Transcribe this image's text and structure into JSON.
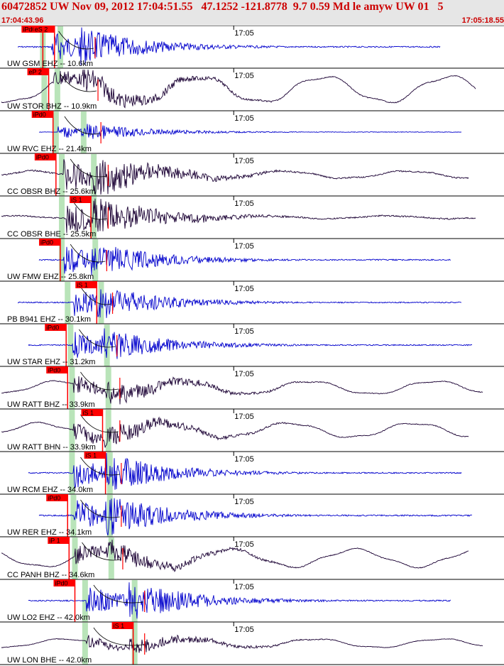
{
  "header": {
    "title": "60472852 UW Nov 09, 2012 17:04:51.55   47.1252 -121.8778  9.7 0.59 Md le amyw UW 01   5",
    "start_time": "17:04:43.96",
    "end_time": "17:05:18.55"
  },
  "colors": {
    "header_text": "#cc0000",
    "header_bg": "#e6e6e6",
    "pick": "#ff0000",
    "pick_window": "#b9e4b9",
    "trace_ehz": "#0000cc",
    "trace_bh": "#1a0033"
  },
  "chart_data": {
    "type": "line",
    "title": "",
    "xlabel": "",
    "ylabel": "",
    "x_range": [
      "17:04:43.96",
      "17:05:18.55"
    ],
    "minute_marker": "17:05",
    "traces": [
      {
        "label": "UW GSM EHZ -- 10.6km",
        "kind": "ehz",
        "amp": 0.9,
        "lf": 0,
        "picks": [
          {
            "text": "iPd0",
            "time": 46.9
          },
          {
            "text": "eS 2",
            "time": 47.7
          }
        ],
        "windows": [
          46.9,
          48.1
        ],
        "onset": 47.5,
        "sdecay": 49.9
      },
      {
        "label": "UW STOR BHZ -- 10.9km",
        "kind": "bh",
        "amp": 0.6,
        "lf": 0.9,
        "picks": [
          {
            "text": "eP 2",
            "time": 47.3
          }
        ],
        "windows": [
          47.0,
          47.9
        ],
        "onset": 47.6,
        "sdecay": 50.1
      },
      {
        "label": "UW RVC EHZ -- 21.4km",
        "kind": "ehz",
        "amp": 0.4,
        "lf": 0,
        "picks": [
          {
            "text": "iPd0",
            "time": 47.6
          }
        ],
        "windows": [
          47.8,
          49.7
        ],
        "onset": 47.9,
        "sdecay": 50.3
      },
      {
        "label": "CC OBSR BHZ -- 25.6km",
        "kind": "bh",
        "amp": 0.95,
        "lf": 0.25,
        "picks": [
          {
            "text": "iPd0",
            "time": 47.8
          }
        ],
        "windows": [
          48.2,
          50.4
        ],
        "onset": 48.3,
        "sdecay": 50.8
      },
      {
        "label": "CC OBSR BHE -- 25.5km",
        "kind": "bh",
        "amp": 0.95,
        "lf": 0.1,
        "picks": [
          {
            "text": "iS 1",
            "time": 50.2
          }
        ],
        "windows": [
          48.2,
          50.4
        ],
        "onset": 48.5,
        "sdecay": 50.8
      },
      {
        "label": "UW FMW EHZ -- 25.8km",
        "kind": "ehz",
        "amp": 0.85,
        "lf": 0,
        "picks": [
          {
            "text": "iPd0",
            "time": 48.1
          }
        ],
        "windows": [
          48.2,
          50.5
        ],
        "onset": 48.3,
        "sdecay": 50.7
      },
      {
        "label": "PB B941 EHZ -- 30.1km",
        "kind": "ehz",
        "amp": 0.8,
        "lf": 0,
        "picks": [
          {
            "text": "iS 1",
            "time": 50.6
          }
        ],
        "windows": [
          48.6,
          50.9
        ],
        "onset": 49.0,
        "sdecay": 51.1
      },
      {
        "label": "UW STAR EHZ -- 31.2km",
        "kind": "ehz",
        "amp": 0.8,
        "lf": 0,
        "picks": [
          {
            "text": "iPd0",
            "time": 48.5
          }
        ],
        "windows": [
          48.8,
          51.3
        ],
        "onset": 48.9,
        "sdecay": 51.4
      },
      {
        "label": "UW RATT BHZ -- 33.9km",
        "kind": "bh",
        "amp": 0.6,
        "lf": 0.45,
        "picks": [
          {
            "text": "iPd0",
            "time": 48.6
          }
        ],
        "windows": [
          48.9,
          51.4
        ],
        "onset": 49.0,
        "sdecay": 51.6
      },
      {
        "label": "UW RATT BHN -- 33.9km",
        "kind": "bh",
        "amp": 0.55,
        "lf": 0.5,
        "picks": [
          {
            "text": "iS 1",
            "time": 51.0
          }
        ],
        "windows": [
          48.9,
          51.4
        ],
        "onset": 49.0,
        "sdecay": 51.6
      },
      {
        "label": "UW RCM EHZ -- 34.0km",
        "kind": "ehz",
        "amp": 0.9,
        "lf": 0,
        "picks": [
          {
            "text": "iS 1",
            "time": 51.2
          }
        ],
        "windows": [
          48.9,
          51.5
        ],
        "onset": 49.0,
        "sdecay": 51.7
      },
      {
        "label": "UW RER EHZ -- 34.1km",
        "kind": "ehz",
        "amp": 0.95,
        "lf": 0,
        "picks": [
          {
            "text": "iPd0",
            "time": 48.6
          }
        ],
        "windows": [
          49.0,
          51.5
        ],
        "onset": 49.0,
        "sdecay": 51.7
      },
      {
        "label": "CC PANH BHZ -- 34.6km",
        "kind": "bh",
        "amp": 0.55,
        "lf": 0.6,
        "picks": [
          {
            "text": "iP 1",
            "time": 48.7
          }
        ],
        "windows": [
          49.1,
          51.6
        ],
        "onset": 49.1,
        "sdecay": 51.8
      },
      {
        "label": "UW LO2 EHZ -- 42.0km",
        "kind": "ehz",
        "amp": 0.9,
        "lf": 0,
        "picks": [
          {
            "text": "iPd0",
            "time": 49.1
          }
        ],
        "windows": [
          49.8,
          53.2
        ],
        "onset": 49.9,
        "sdecay": 53.3
      },
      {
        "label": "UW LON BHE -- 42.0km",
        "kind": "bh",
        "amp": 0.4,
        "lf": 0.3,
        "picks": [
          {
            "text": "iS 1",
            "time": 53.1
          }
        ],
        "windows": [
          49.8,
          53.2
        ],
        "onset": 49.9,
        "sdecay": 53.3
      }
    ]
  }
}
